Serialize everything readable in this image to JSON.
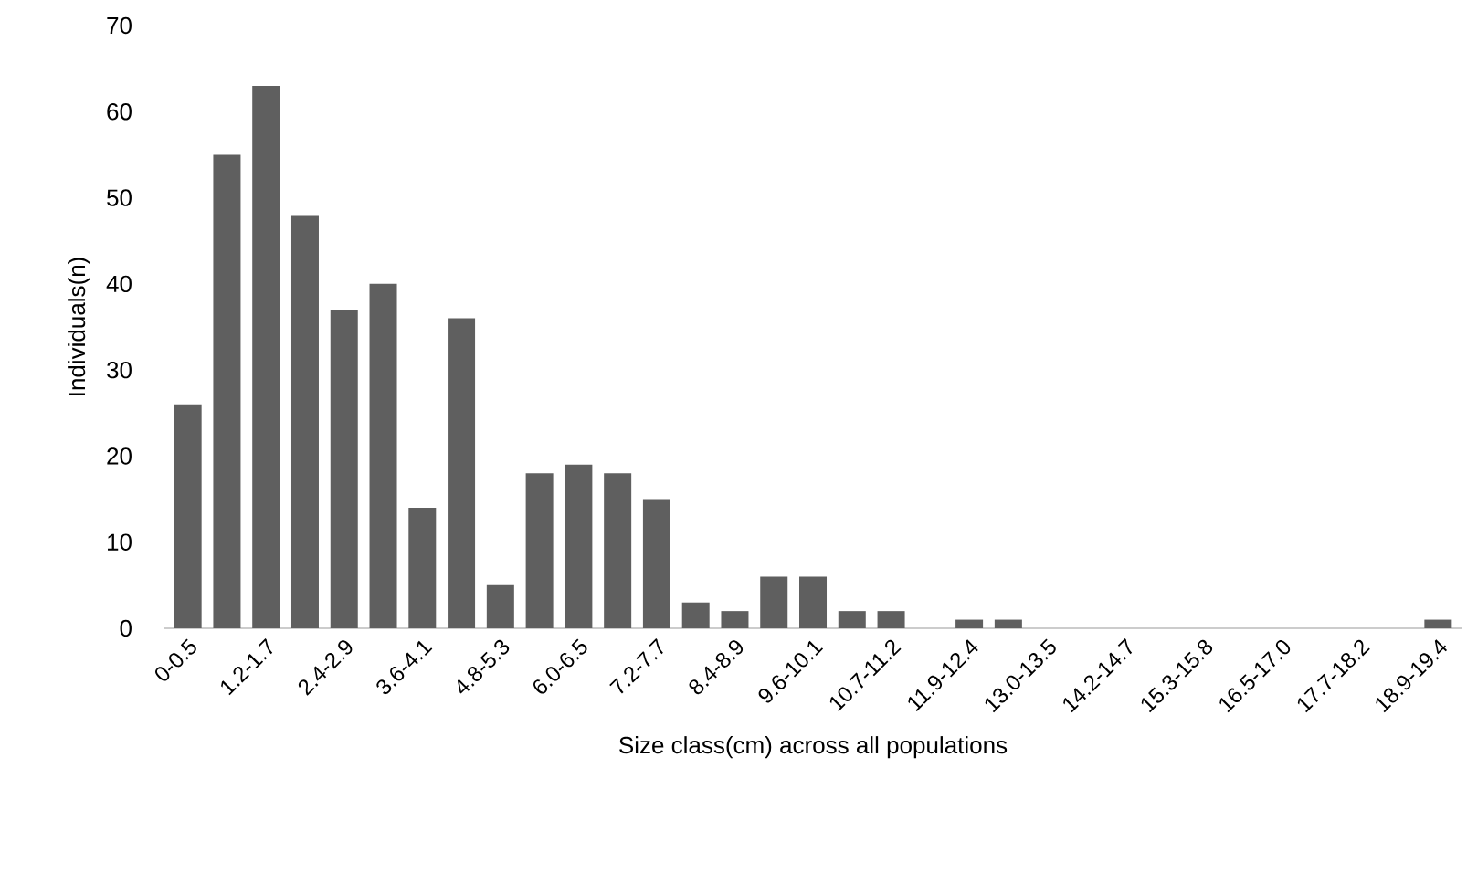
{
  "chart_data": {
    "type": "bar",
    "xlabel": "Size class(cm) across all populations",
    "ylabel": "Individuals(n)",
    "categories": [
      "0-0.5",
      null,
      "1.2-1.7",
      null,
      "2.4-2.9",
      null,
      "3.6-4.1",
      null,
      "4.8-5.3",
      null,
      "6.0-6.5",
      null,
      "7.2-7.7",
      null,
      "8.4-8.9",
      null,
      "9.6-10.1",
      null,
      "10.7-11.2",
      null,
      "11.9-12.4",
      null,
      "13.0-13.5",
      null,
      "14.2-14.7",
      null,
      "15.3-15.8",
      null,
      "16.5-17.0",
      null,
      "17.7-18.2",
      null,
      "18.9-19.4"
    ],
    "values": [
      26,
      55,
      63,
      48,
      37,
      40,
      14,
      36,
      5,
      18,
      19,
      18,
      15,
      3,
      2,
      6,
      6,
      2,
      2,
      0,
      1,
      1,
      0,
      0,
      0,
      0,
      0,
      0,
      0,
      0,
      0,
      0,
      1
    ],
    "color": "#5f5f5f",
    "ylim": [
      0,
      70
    ],
    "yticks": [
      0,
      10,
      20,
      30,
      40,
      50,
      60,
      70
    ]
  }
}
